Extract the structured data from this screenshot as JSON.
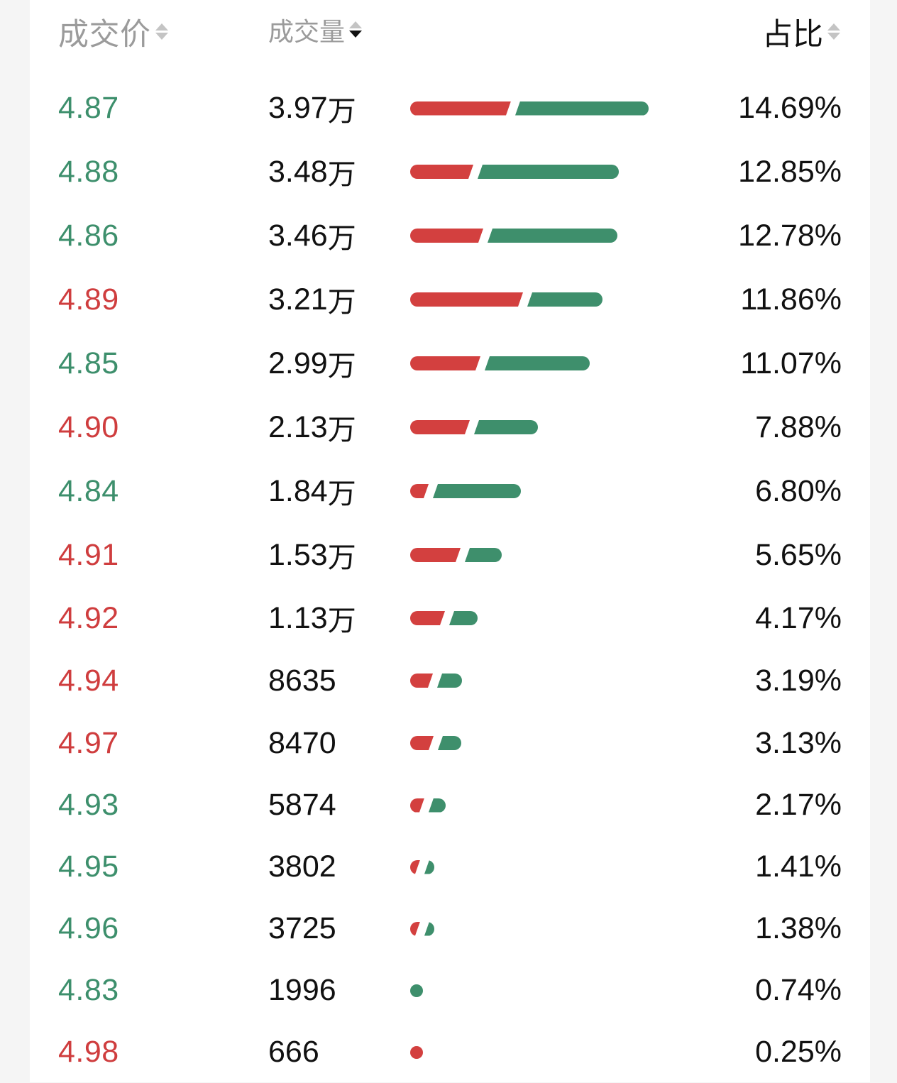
{
  "header": {
    "price_label": "成交价",
    "volume_label": "成交量",
    "ratio_label": "占比",
    "sort_icon": "sort-arrows-icon",
    "active_sort": "volume-desc"
  },
  "colors": {
    "up": "#cf3d3e",
    "down": "#3d8f6c",
    "buy_bar": "#d3403f",
    "sell_bar": "#3e8f6c"
  },
  "rows": [
    {
      "price": "4.87",
      "direction": "down",
      "volume": "3.97",
      "unit": "万",
      "ratio": "14.69%",
      "buy_share": 0.43
    },
    {
      "price": "4.88",
      "direction": "down",
      "volume": "3.48",
      "unit": "万",
      "ratio": "12.85%",
      "buy_share": 0.31
    },
    {
      "price": "4.86",
      "direction": "down",
      "volume": "3.46",
      "unit": "万",
      "ratio": "12.78%",
      "buy_share": 0.36
    },
    {
      "price": "4.89",
      "direction": "up",
      "volume": "3.21",
      "unit": "万",
      "ratio": "11.86%",
      "buy_share": 0.6
    },
    {
      "price": "4.85",
      "direction": "down",
      "volume": "2.99",
      "unit": "万",
      "ratio": "11.07%",
      "buy_share": 0.4
    },
    {
      "price": "4.90",
      "direction": "up",
      "volume": "2.13",
      "unit": "万",
      "ratio": "7.88%",
      "buy_share": 0.48
    },
    {
      "price": "4.84",
      "direction": "down",
      "volume": "1.84",
      "unit": "万",
      "ratio": "6.80%",
      "buy_share": 0.17
    },
    {
      "price": "4.91",
      "direction": "up",
      "volume": "1.53",
      "unit": "万",
      "ratio": "5.65%",
      "buy_share": 0.58
    },
    {
      "price": "4.92",
      "direction": "up",
      "volume": "1.13",
      "unit": "万",
      "ratio": "4.17%",
      "buy_share": 0.55
    },
    {
      "price": "4.94",
      "direction": "up",
      "volume": "8635",
      "unit": "",
      "ratio": "3.19%",
      "buy_share": 0.48
    },
    {
      "price": "4.97",
      "direction": "up",
      "volume": "8470",
      "unit": "",
      "ratio": "3.13%",
      "buy_share": 0.5
    },
    {
      "price": "4.93",
      "direction": "down",
      "volume": "5874",
      "unit": "",
      "ratio": "2.17%",
      "buy_share": 0.46
    },
    {
      "price": "4.95",
      "direction": "down",
      "volume": "3802",
      "unit": "",
      "ratio": "1.41%",
      "buy_share": 0.48
    },
    {
      "price": "4.96",
      "direction": "down",
      "volume": "3725",
      "unit": "",
      "ratio": "1.38%",
      "buy_share": 0.48
    },
    {
      "price": "4.83",
      "direction": "down",
      "volume": "1996",
      "unit": "",
      "ratio": "0.74%",
      "buy_share": 0
    },
    {
      "price": "4.98",
      "direction": "up",
      "volume": "666",
      "unit": "",
      "ratio": "0.25%",
      "buy_share": 1
    }
  ]
}
